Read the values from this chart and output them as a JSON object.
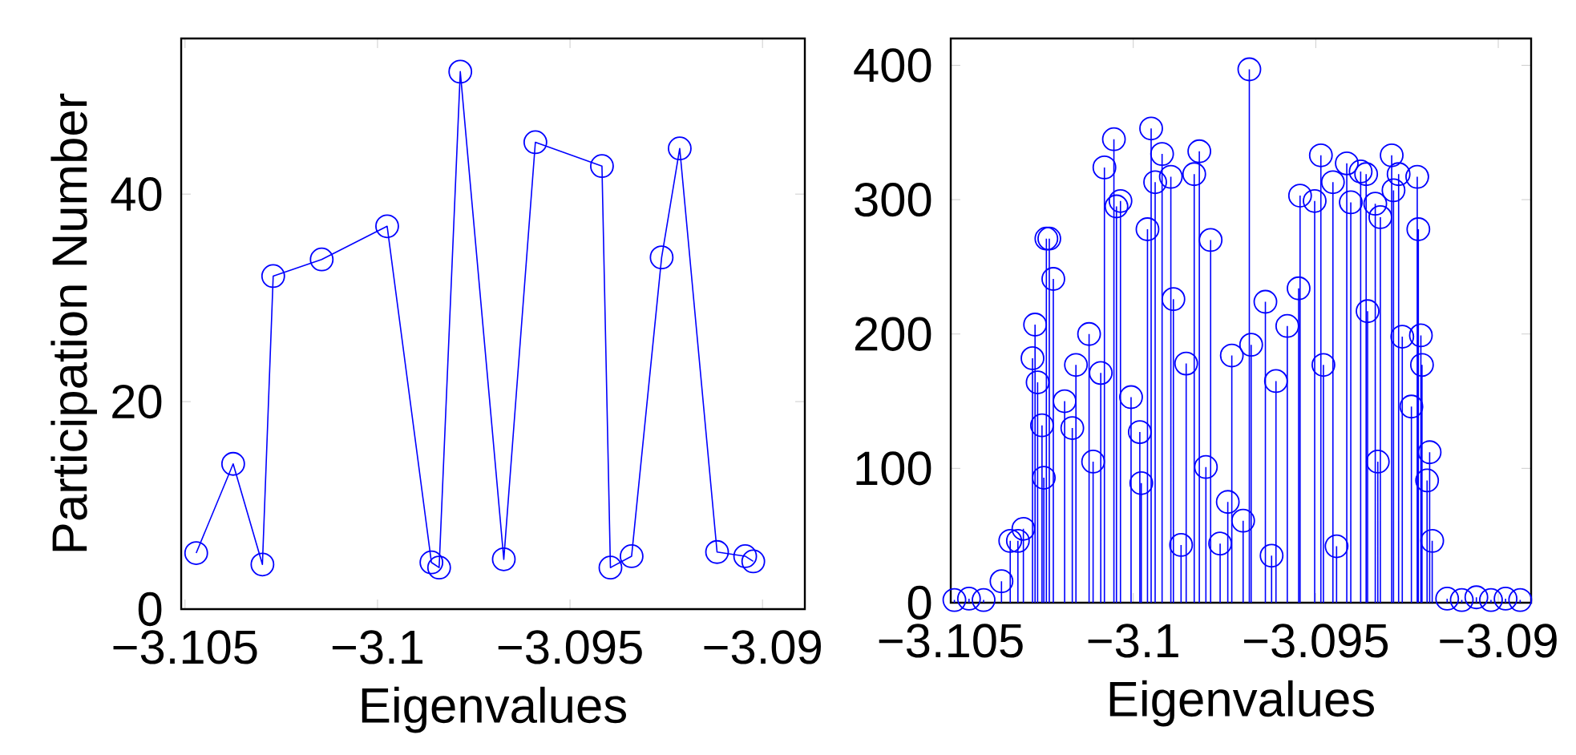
{
  "chart_data": [
    {
      "type": "line",
      "xlabel": "Eigenvalues",
      "ylabel": "Participation Number",
      "marker": "circle",
      "grid": false,
      "color": "#0000ff",
      "xlim": [
        -3.1051,
        -3.0889
      ],
      "ylim": [
        0,
        55
      ],
      "xticks": [
        {
          "value": -3.105,
          "label": "−3.105"
        },
        {
          "value": -3.1,
          "label": "−3.1"
        },
        {
          "value": -3.095,
          "label": "−3.095"
        },
        {
          "value": -3.09,
          "label": "−3.09"
        }
      ],
      "yticks": [
        0,
        20,
        40
      ],
      "x": [
        -3.10471,
        -3.10375,
        -3.10299,
        -3.10271,
        -3.10145,
        -3.09975,
        -3.0986,
        -3.0984,
        -3.09785,
        -3.09672,
        -3.0959,
        -3.09417,
        -3.09395,
        -3.0934,
        -3.09262,
        -3.09215,
        -3.09118,
        -3.09045,
        -3.09024
      ],
      "values": [
        5.4,
        14.0,
        4.3,
        32.1,
        33.7,
        36.9,
        4.5,
        4.0,
        51.8,
        4.8,
        45.0,
        42.7,
        4.0,
        5.1,
        33.9,
        44.4,
        5.5,
        5.1,
        4.6
      ]
    },
    {
      "type": "lollipop",
      "xlabel": "Eigenvalues",
      "marker": "circle",
      "grid": false,
      "color": "#0000ff",
      "xlim": [
        -3.105,
        -3.0891
      ],
      "ylim": [
        0,
        420
      ],
      "xticks": [
        {
          "value": -3.105,
          "label": "−3.105"
        },
        {
          "value": -3.1,
          "label": "−3.1"
        },
        {
          "value": -3.095,
          "label": "−3.095"
        },
        {
          "value": -3.09,
          "label": "−3.09"
        }
      ],
      "yticks": [
        0,
        100,
        200,
        300,
        400
      ],
      "x": [
        -3.1049,
        -3.1045,
        -3.1041,
        -3.10361,
        -3.10337,
        -3.10316,
        -3.10301,
        -3.10276,
        -3.10269,
        -3.10262,
        -3.1025,
        -3.10245,
        -3.10238,
        -3.1023,
        -3.10219,
        -3.10188,
        -3.10167,
        -3.10157,
        -3.10121,
        -3.1011,
        -3.10089,
        -3.10079,
        -3.10053,
        -3.10046,
        -3.10035,
        -3.10006,
        -3.09982,
        -3.09978,
        -3.09961,
        -3.09951,
        -3.0994,
        -3.09921,
        -3.09897,
        -3.0989,
        -3.09869,
        -3.09855,
        -3.09833,
        -3.09819,
        -3.09801,
        -3.09788,
        -3.09762,
        -3.09741,
        -3.0973,
        -3.09699,
        -3.09682,
        -3.09677,
        -3.09638,
        -3.09621,
        -3.09609,
        -3.09578,
        -3.09547,
        -3.09543,
        -3.09503,
        -3.09486,
        -3.09479,
        -3.09453,
        -3.09443,
        -3.09415,
        -3.09404,
        -3.09377,
        -3.09362,
        -3.09358,
        -3.09337,
        -3.0933,
        -3.09323,
        -3.09292,
        -3.09287,
        -3.09273,
        -3.09263,
        -3.09238,
        -3.09222,
        -3.09219,
        -3.09212,
        -3.09209,
        -3.09195,
        -3.09188,
        -3.09181,
        -3.0914,
        -3.091,
        -3.0906,
        -3.0902,
        -3.0898,
        -3.0894
      ],
      "values": [
        2,
        3,
        2,
        16,
        46,
        46,
        55,
        182,
        207,
        164,
        132,
        93,
        271,
        271,
        241,
        150,
        130,
        177,
        200,
        105,
        171,
        324,
        345,
        295,
        299,
        153,
        127,
        89,
        278,
        353,
        313,
        334,
        317,
        226,
        43,
        178,
        319,
        336,
        101,
        270,
        44,
        75,
        184,
        61,
        397,
        192,
        224,
        35,
        165,
        206,
        234,
        303,
        299,
        333,
        177,
        313,
        42,
        327,
        298,
        321,
        319,
        217,
        297,
        105,
        287,
        333,
        307,
        319,
        198,
        146,
        317,
        278,
        199,
        177,
        91,
        112,
        46,
        3,
        2,
        4,
        2,
        3,
        2
      ]
    }
  ]
}
